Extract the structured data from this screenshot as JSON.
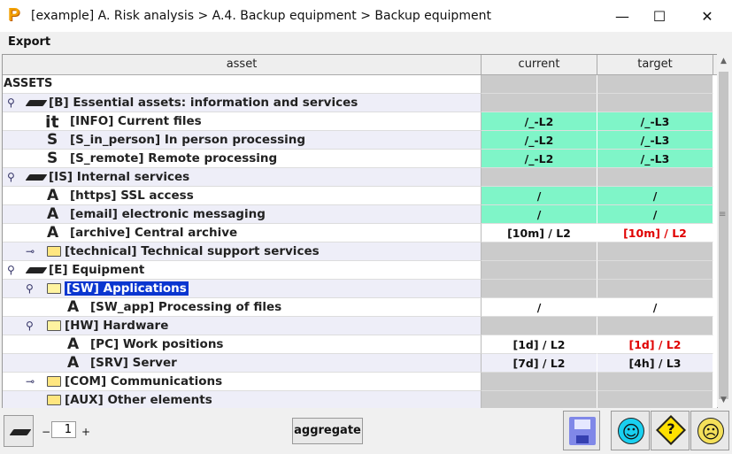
{
  "window": {
    "logo": "P",
    "title": "[example] A. Risk analysis > A.4. Backup equipment > Backup equipment",
    "minimize": "—",
    "maximize": "☐",
    "close": "✕"
  },
  "menu": {
    "export": "Export"
  },
  "table": {
    "columns": [
      "asset",
      "current",
      "target"
    ],
    "rows": [
      {
        "label": "ASSETS",
        "current": "",
        "target": ""
      },
      {
        "label": "[B] Essential assets: information and services",
        "current": "",
        "target": ""
      },
      {
        "glyph": "it",
        "label": "[INFO] Current files",
        "current": "/_-L2",
        "target": "/_-L3"
      },
      {
        "glyph": "S",
        "label": "[S_in_person] In person processing",
        "current": "/_-L2",
        "target": "/_-L3"
      },
      {
        "glyph": "S",
        "label": "[S_remote] Remote processing",
        "current": "/_-L2",
        "target": "/_-L3"
      },
      {
        "label": "[IS] Internal services",
        "current": "",
        "target": ""
      },
      {
        "glyph": "A",
        "label": "[https] SSL access",
        "current": "/",
        "target": "/"
      },
      {
        "glyph": "A",
        "label": "[email] electronic messaging",
        "current": "/",
        "target": "/"
      },
      {
        "glyph": "A",
        "label": "[archive] Central archive",
        "current_a": "[10m]",
        "current_b": " / L2",
        "target_a": "[10m]",
        "target_b": " / L2"
      },
      {
        "label": "[technical] Technical support services",
        "current": "",
        "target": ""
      },
      {
        "label": "[E] Equipment",
        "current": "",
        "target": ""
      },
      {
        "label": "[SW] Applications",
        "current": "",
        "target": ""
      },
      {
        "glyph": "A",
        "label": "[SW_app] Processing of files",
        "current": "/",
        "target": "/"
      },
      {
        "label": "[HW] Hardware",
        "current": "",
        "target": ""
      },
      {
        "glyph": "A",
        "label": "[PC] Work positions",
        "current_a": "[1d]",
        "current_b": " / L2",
        "target_a": "[1d]",
        "target_b": " / L2"
      },
      {
        "glyph": "A",
        "label": "[SRV] Server",
        "current_a": "[7d]",
        "current_b": " / L2",
        "target_a": "[4h]",
        "target_b": " / L3"
      },
      {
        "label": "[COM] Communications",
        "current": "",
        "target": ""
      },
      {
        "label": "[AUX] Other elements",
        "current": "",
        "target": ""
      }
    ]
  },
  "bottom": {
    "stepper_minus": "−",
    "stepper_value": "1",
    "stepper_plus": "+",
    "aggregate": "aggregate",
    "icons": [
      "layer-icon",
      "save-icon",
      "happy-face-icon",
      "warning-question-icon",
      "sad-face-icon"
    ]
  },
  "colors": {
    "green": "#7ff5c8",
    "gray": "#cbcbcb",
    "red": "#e00000",
    "selection": "#0a36d0"
  }
}
